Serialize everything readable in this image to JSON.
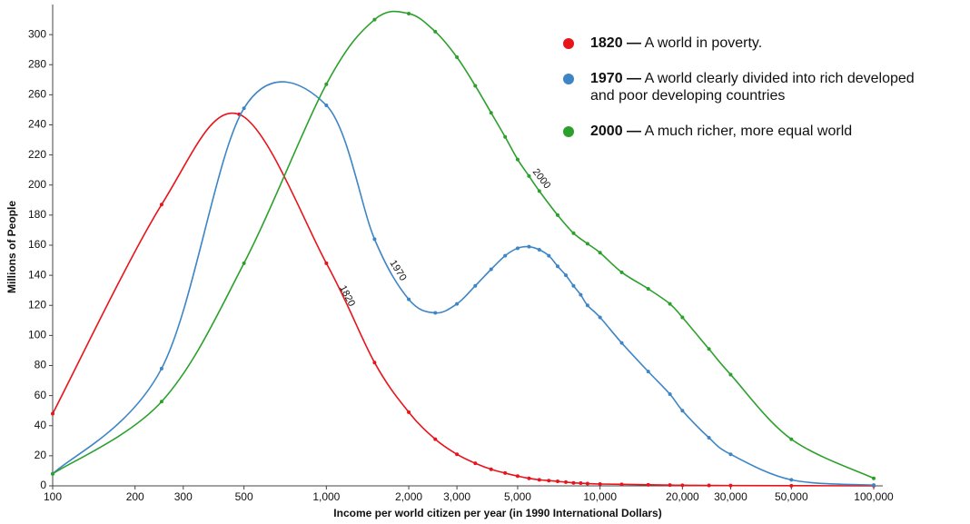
{
  "chart_data": {
    "type": "line",
    "xlabel": "Income per world citizen per year (in 1990 International Dollars)",
    "ylabel": "Millions of People",
    "xscale": "log",
    "xlim": [
      100,
      100000
    ],
    "ylim": [
      0,
      320
    ],
    "xticks": [
      100,
      200,
      300,
      500,
      {
        "value": 1000,
        "label": "1,000"
      },
      {
        "value": 2000,
        "label": "2,000"
      },
      {
        "value": 3000,
        "label": "3,000"
      },
      {
        "value": 5000,
        "label": "5,000"
      },
      {
        "value": 10000,
        "label": "10,000"
      },
      {
        "value": 20000,
        "label": "20,000"
      },
      {
        "value": 30000,
        "label": "30,000"
      },
      {
        "value": 50000,
        "label": "50,000"
      },
      {
        "value": 100000,
        "label": "100,000"
      }
    ],
    "yticks": [
      0,
      20,
      40,
      60,
      80,
      100,
      120,
      140,
      160,
      180,
      200,
      220,
      240,
      260,
      280,
      300
    ],
    "legend": "top-right",
    "legend_separator": "—",
    "series": [
      {
        "name": "1820",
        "color": "#e8141c",
        "description": [
          "A world in poverty."
        ],
        "x": [
          100,
          250,
          480,
          1000,
          1500,
          2000,
          2500,
          3000,
          3500,
          4000,
          4500,
          5000,
          5500,
          6000,
          6500,
          7000,
          7500,
          8000,
          8500,
          9000,
          10000,
          12000,
          15000,
          18000,
          20000,
          25000,
          30000,
          50000,
          100000
        ],
        "values": [
          48,
          187,
          247,
          148,
          82,
          49,
          31,
          21,
          15,
          11,
          8.5,
          6.5,
          5,
          4,
          3.5,
          3,
          2.5,
          2,
          1.8,
          1.5,
          1.2,
          1,
          0.7,
          0.5,
          0.4,
          0.3,
          0.2,
          0.1,
          0.05
        ]
      },
      {
        "name": "1970",
        "color": "#3d85c6",
        "description": [
          "A world clearly divided into rich developed",
          "and poor developing countries"
        ],
        "x": [
          100,
          250,
          500,
          1000,
          1500,
          2000,
          2500,
          3000,
          3500,
          4000,
          4500,
          5000,
          5500,
          6000,
          6500,
          7000,
          7500,
          8000,
          8500,
          9000,
          10000,
          12000,
          15000,
          18000,
          20000,
          25000,
          30000,
          50000,
          100000
        ],
        "values": [
          8,
          78,
          251,
          253,
          164,
          124,
          115,
          121,
          133,
          144,
          153,
          158,
          159,
          157,
          153,
          146,
          140,
          133,
          127,
          120,
          112,
          95,
          76,
          61,
          50,
          32,
          21,
          4,
          0.5
        ]
      },
      {
        "name": "2000",
        "color": "#2ca02c",
        "description": [
          "A much richer, more equal world"
        ],
        "x": [
          100,
          250,
          500,
          1000,
          1500,
          2000,
          2500,
          3000,
          3500,
          4000,
          4500,
          5000,
          5500,
          6000,
          7000,
          8000,
          9000,
          10000,
          12000,
          15000,
          18000,
          20000,
          25000,
          30000,
          50000,
          100000
        ],
        "values": [
          8,
          56,
          148,
          267,
          310,
          314,
          302,
          285,
          266,
          248,
          232,
          217,
          206,
          196,
          180,
          168,
          161,
          155,
          142,
          131,
          121,
          112,
          91,
          74,
          31,
          5
        ]
      }
    ]
  }
}
